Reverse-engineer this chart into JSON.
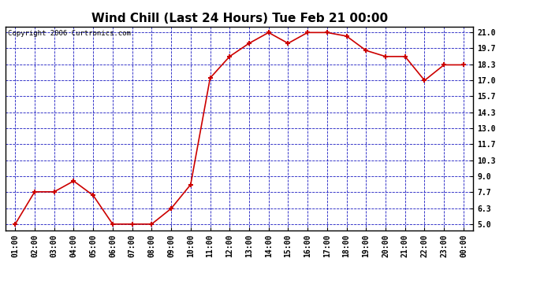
{
  "title": "Wind Chill (Last 24 Hours) Tue Feb 21 00:00",
  "copyright": "Copyright 2006 Curtronics.com",
  "x_labels": [
    "01:00",
    "02:00",
    "03:00",
    "04:00",
    "05:00",
    "06:00",
    "07:00",
    "08:00",
    "09:00",
    "10:00",
    "11:00",
    "12:00",
    "13:00",
    "14:00",
    "15:00",
    "16:00",
    "17:00",
    "18:00",
    "19:00",
    "20:00",
    "21:00",
    "22:00",
    "23:00",
    "00:00"
  ],
  "y_values": [
    5.0,
    7.7,
    7.7,
    8.6,
    7.4,
    5.0,
    5.0,
    5.0,
    6.3,
    8.3,
    17.2,
    19.0,
    20.1,
    21.0,
    20.1,
    21.0,
    21.0,
    20.7,
    19.5,
    19.0,
    19.0,
    17.0,
    18.3,
    18.3
  ],
  "y_ticks": [
    5.0,
    6.3,
    7.7,
    9.0,
    10.3,
    11.7,
    13.0,
    14.3,
    15.7,
    17.0,
    18.3,
    19.7,
    21.0
  ],
  "ylim": [
    4.5,
    21.5
  ],
  "line_color": "#cc0000",
  "marker": "+",
  "marker_color": "#cc0000",
  "fig_bg_color": "#ffffff",
  "plot_bg": "#ffffff",
  "grid_color": "#0000bb",
  "title_fontsize": 11,
  "copyright_fontsize": 6.5,
  "tick_fontsize": 7,
  "title_color": "#000000",
  "copyright_color": "#000000"
}
